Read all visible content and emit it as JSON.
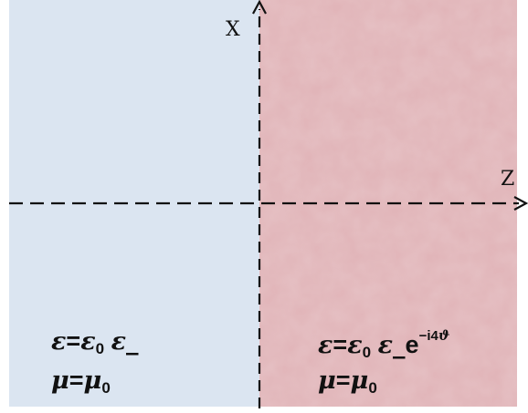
{
  "colors": {
    "left_medium": "#dbe5f1",
    "right_medium": "#e1b5b9",
    "axis": "#111111"
  },
  "axes": {
    "vertical_label": "X",
    "horizontal_label": "Z"
  },
  "left_medium": {
    "permittivity": {
      "symbol": "ε",
      "equals": "=",
      "base": "ε",
      "base_subscript": "0",
      "factor": "ε_"
    },
    "permeability": {
      "symbol": "μ",
      "equals": "=",
      "base": "μ",
      "base_subscript": "0"
    }
  },
  "right_medium": {
    "permittivity": {
      "symbol": "ε",
      "equals": "=",
      "base": "ε",
      "base_subscript": "0",
      "factor": "ε_",
      "exp_base": "e",
      "exp_power_prefix": "−i4",
      "exp_power_symbol": "ϑ"
    },
    "permeability": {
      "symbol": "μ",
      "equals": "=",
      "base": "μ",
      "base_subscript": "0"
    }
  }
}
